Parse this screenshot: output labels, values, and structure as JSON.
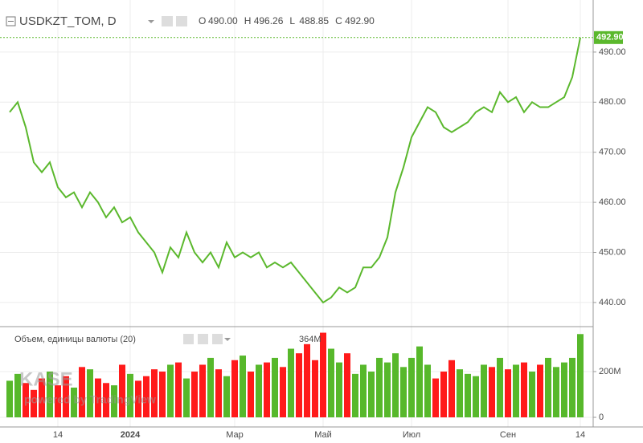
{
  "chart_data": [
    {
      "type": "line",
      "title": "USDKZT_TOM, D",
      "ohlc": [
        {
          "name": "O",
          "value": 490,
          "label": "490.00"
        },
        {
          "name": "H",
          "value": 496.26,
          "label": "496.26"
        },
        {
          "name": "L",
          "value": 488.85,
          "label": "488.85"
        },
        {
          "name": "C",
          "value": 492.9,
          "label": "492.90"
        }
      ],
      "categories": [
        null,
        null,
        null,
        null,
        null,
        null,
        "14",
        null,
        null,
        null,
        null,
        null,
        null,
        null,
        null,
        "2024",
        null,
        null,
        null,
        null,
        null,
        null,
        null,
        null,
        null,
        null,
        null,
        null,
        "Мар",
        null,
        null,
        null,
        null,
        null,
        null,
        null,
        null,
        null,
        null,
        "Май",
        null,
        null,
        null,
        null,
        null,
        null,
        null,
        null,
        null,
        null,
        "Июл",
        null,
        null,
        null,
        null,
        null,
        null,
        null,
        null,
        null,
        null,
        null,
        "Сен",
        null,
        null,
        null,
        null,
        null,
        null,
        null,
        null,
        "14"
      ],
      "values": [
        478,
        480,
        475,
        468,
        466,
        468,
        463,
        461,
        462,
        459,
        462,
        460,
        457,
        459,
        456,
        457,
        454,
        452,
        450,
        446,
        451,
        449,
        454,
        450,
        448,
        450,
        447,
        452,
        449,
        450,
        449,
        450,
        447,
        448,
        447,
        448,
        446,
        444,
        442,
        440,
        441,
        443,
        442,
        443,
        447,
        447,
        449,
        453,
        462,
        467,
        473,
        476,
        479,
        478,
        475,
        474,
        475,
        476,
        478,
        479,
        478,
        482,
        480,
        481,
        478,
        480,
        479,
        479,
        480,
        481,
        485,
        492.9
      ],
      "color": "#5bb82d",
      "last_price": {
        "value": 492.9,
        "label": "492.90"
      },
      "ylim": [
        435.5,
        499.6
      ],
      "yticks": [
        {
          "value": 440,
          "label": "440.00"
        },
        {
          "value": 450,
          "label": "450.00"
        },
        {
          "value": 460,
          "label": "460.00"
        },
        {
          "value": 470,
          "label": "470.00"
        },
        {
          "value": 480,
          "label": "480.00"
        },
        {
          "value": 490,
          "label": "490.00"
        }
      ],
      "grid": true
    },
    {
      "type": "bar",
      "title": "Объем, единицы валюты (20)",
      "values": [
        160,
        190,
        150,
        120,
        170,
        200,
        140,
        180,
        130,
        220,
        210,
        170,
        150,
        140,
        230,
        190,
        160,
        180,
        210,
        200,
        230,
        240,
        170,
        200,
        230,
        260,
        210,
        180,
        250,
        270,
        200,
        230,
        240,
        260,
        220,
        300,
        280,
        320,
        250,
        370,
        300,
        240,
        280,
        190,
        230,
        200,
        260,
        240,
        280,
        220,
        260,
        310,
        230,
        170,
        200,
        250,
        210,
        190,
        180,
        230,
        220,
        260,
        210,
        230,
        240,
        200,
        230,
        260,
        220,
        240,
        260,
        364
      ],
      "last_value": {
        "value": 364,
        "label": "364M"
      },
      "up_color": "#57b82b",
      "down_color": "#ff1a1a",
      "ylim": [
        -35,
        386
      ],
      "yticks": [
        0,
        {
          "value": 200,
          "label": "200M"
        }
      ],
      "grid": true
    },
    {
      "type": "watermark",
      "logo": "KASE",
      "text": "powered by TradingView"
    }
  ]
}
